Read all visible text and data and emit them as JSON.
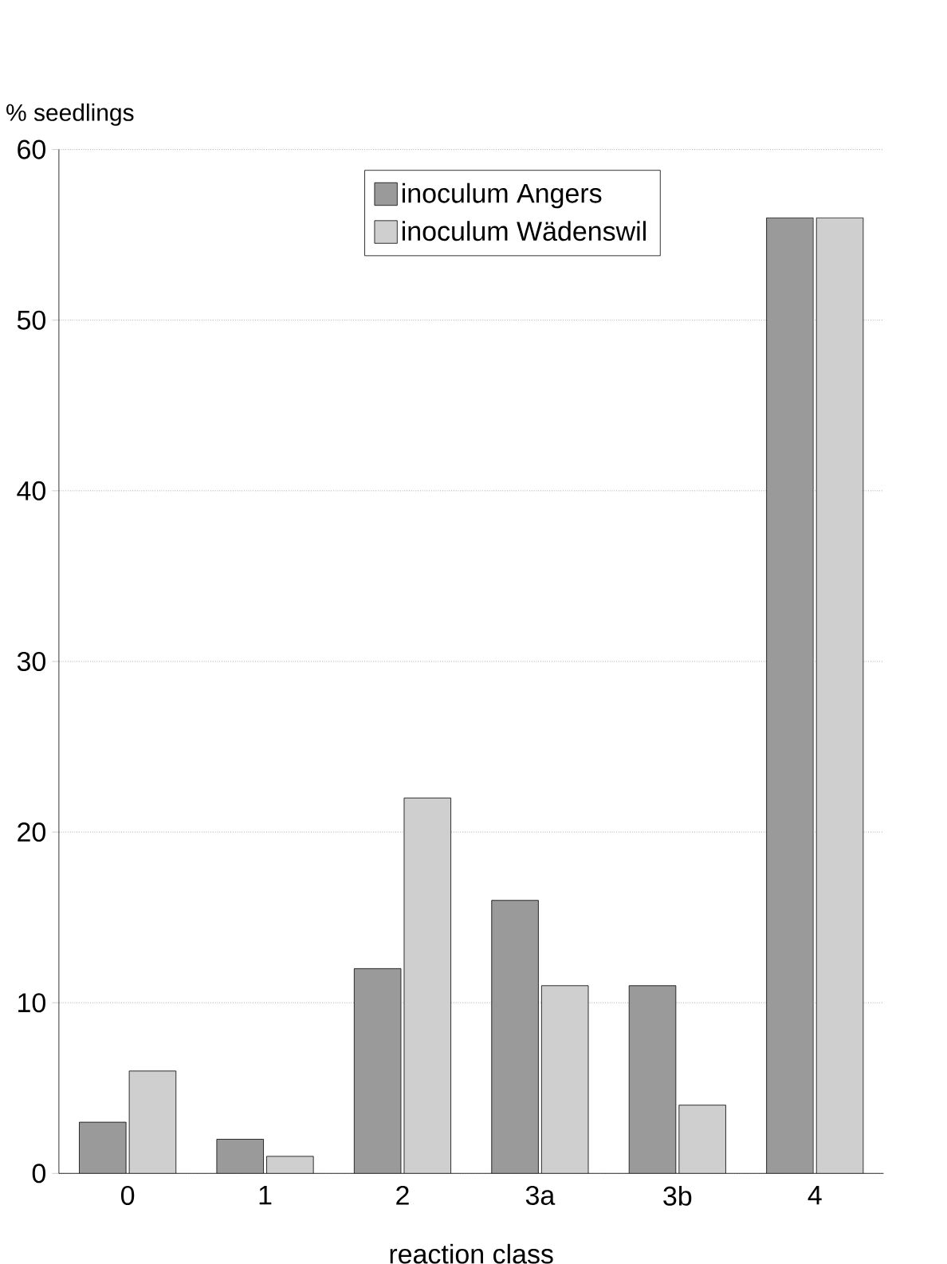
{
  "chart_data": {
    "type": "bar",
    "xlabel": "reaction class",
    "ylabel": "% seedlings",
    "categories": [
      "0",
      "1",
      "2",
      "3a",
      "3b",
      "4"
    ],
    "series": [
      {
        "name": "inoculum Angers",
        "color": "#9a9a9a",
        "values": [
          3,
          2,
          12,
          16,
          11,
          56
        ]
      },
      {
        "name": "inoculum Wädenswil",
        "color": "#cfcfcf",
        "values": [
          6,
          1,
          22,
          11,
          4,
          56
        ]
      }
    ],
    "ylim": [
      0,
      60
    ],
    "yticks": [
      0,
      10,
      20,
      30,
      40,
      50,
      60
    ],
    "grid": "y",
    "legend": "top"
  }
}
